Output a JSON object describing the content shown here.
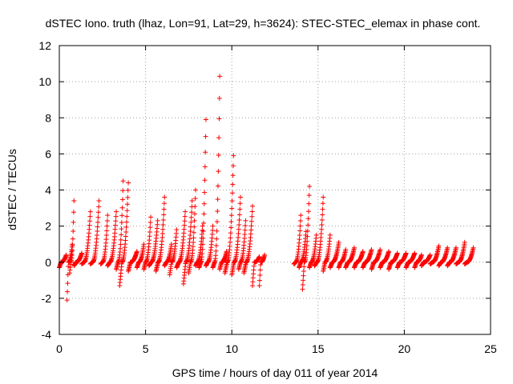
{
  "chart_data": {
    "type": "scatter",
    "title": "dSTEC Iono. truth (lhaz, Lon=91, Lat=29, h=3624): STEC-STEC_elemax in phase cont.",
    "xlabel": "GPS time / hours of day 011 of year 2014",
    "ylabel": "dSTEC  / TECUs",
    "xlim": [
      0,
      25
    ],
    "ylim": [
      -4,
      12
    ],
    "x_ticks": [
      0,
      5,
      10,
      15,
      20,
      25
    ],
    "y_ticks": [
      -4,
      -2,
      0,
      2,
      4,
      6,
      8,
      10,
      12
    ],
    "grid": true,
    "marker": "plus",
    "series_color": "#ff0000",
    "arcs": [
      {
        "x0": 0.0,
        "x1": 0.4,
        "ymin": -0.3,
        "ymax": 0.4
      },
      {
        "x0": 0.45,
        "x1": 0.75,
        "ymin": -2.1,
        "ymax": 1.0
      },
      {
        "x0": 0.6,
        "x1": 0.85,
        "ymin": -0.6,
        "ymax": 3.4
      },
      {
        "x0": 0.85,
        "x1": 1.3,
        "ymin": -0.2,
        "ymax": 0.5
      },
      {
        "x0": 1.3,
        "x1": 1.8,
        "ymin": -0.1,
        "ymax": 2.8
      },
      {
        "x0": 1.8,
        "x1": 2.3,
        "ymin": -0.1,
        "ymax": 3.4
      },
      {
        "x0": 2.4,
        "x1": 2.8,
        "ymin": -0.1,
        "ymax": 2.6
      },
      {
        "x0": 2.8,
        "x1": 3.3,
        "ymin": -0.2,
        "ymax": 2.8
      },
      {
        "x0": 3.3,
        "x1": 3.7,
        "ymin": -0.4,
        "ymax": 4.5
      },
      {
        "x0": 3.5,
        "x1": 4.0,
        "ymin": -1.3,
        "ymax": 4.4
      },
      {
        "x0": 4.0,
        "x1": 4.5,
        "ymin": -0.5,
        "ymax": 0.6
      },
      {
        "x0": 4.5,
        "x1": 4.9,
        "ymin": -0.3,
        "ymax": 1.0
      },
      {
        "x0": 4.9,
        "x1": 5.3,
        "ymin": -0.4,
        "ymax": 2.5
      },
      {
        "x0": 5.2,
        "x1": 5.7,
        "ymin": -0.2,
        "ymax": 2.3
      },
      {
        "x0": 5.6,
        "x1": 6.1,
        "ymin": -0.5,
        "ymax": 3.6
      },
      {
        "x0": 6.1,
        "x1": 6.5,
        "ymin": -0.2,
        "ymax": 1.0
      },
      {
        "x0": 6.4,
        "x1": 6.8,
        "ymin": -0.7,
        "ymax": 1.8
      },
      {
        "x0": 6.8,
        "x1": 7.3,
        "ymin": -0.3,
        "ymax": 2.8
      },
      {
        "x0": 7.2,
        "x1": 7.7,
        "ymin": -1.2,
        "ymax": 3.4
      },
      {
        "x0": 7.5,
        "x1": 7.9,
        "ymin": -0.6,
        "ymax": 4.0
      },
      {
        "x0": 7.9,
        "x1": 8.3,
        "ymin": -0.2,
        "ymax": 2.0
      },
      {
        "x0": 8.1,
        "x1": 8.5,
        "ymin": -0.3,
        "ymax": 7.9
      },
      {
        "x0": 8.5,
        "x1": 8.9,
        "ymin": -0.2,
        "ymax": 2.0
      },
      {
        "x0": 8.9,
        "x1": 9.3,
        "ymin": -0.3,
        "ymax": 10.3
      },
      {
        "x0": 9.3,
        "x1": 9.7,
        "ymin": -0.4,
        "ymax": 0.6
      },
      {
        "x0": 9.6,
        "x1": 10.1,
        "ymin": -0.6,
        "ymax": 5.9
      },
      {
        "x0": 10.0,
        "x1": 10.5,
        "ymin": -0.7,
        "ymax": 3.6
      },
      {
        "x0": 10.4,
        "x1": 10.8,
        "ymin": -0.4,
        "ymax": 2.3
      },
      {
        "x0": 10.7,
        "x1": 11.2,
        "ymin": -0.6,
        "ymax": 3.1
      },
      {
        "x0": 11.2,
        "x1": 11.6,
        "ymin": -1.3,
        "ymax": 0.3
      },
      {
        "x0": 11.6,
        "x1": 11.9,
        "ymin": -1.3,
        "ymax": 0.4
      },
      {
        "x0": 13.6,
        "x1": 14.0,
        "ymin": -0.1,
        "ymax": 2.6
      },
      {
        "x0": 13.9,
        "x1": 14.3,
        "ymin": -0.3,
        "ymax": 1.7
      },
      {
        "x0": 14.1,
        "x1": 14.5,
        "ymin": -1.5,
        "ymax": 4.2
      },
      {
        "x0": 14.5,
        "x1": 14.9,
        "ymin": -0.3,
        "ymax": 1.5
      },
      {
        "x0": 14.8,
        "x1": 15.3,
        "ymin": -0.2,
        "ymax": 3.6
      },
      {
        "x0": 15.3,
        "x1": 15.7,
        "ymin": -0.5,
        "ymax": 1.5
      },
      {
        "x0": 15.7,
        "x1": 16.2,
        "ymin": -0.3,
        "ymax": 1.1
      },
      {
        "x0": 16.2,
        "x1": 16.6,
        "ymin": -0.3,
        "ymax": 0.7
      },
      {
        "x0": 16.6,
        "x1": 17.1,
        "ymin": -0.3,
        "ymax": 0.8
      },
      {
        "x0": 17.1,
        "x1": 17.6,
        "ymin": -0.3,
        "ymax": 0.6
      },
      {
        "x0": 17.6,
        "x1": 18.1,
        "ymin": -0.3,
        "ymax": 0.7
      },
      {
        "x0": 18.1,
        "x1": 18.6,
        "ymin": -0.4,
        "ymax": 0.7
      },
      {
        "x0": 18.6,
        "x1": 19.1,
        "ymin": -0.3,
        "ymax": 0.6
      },
      {
        "x0": 19.1,
        "x1": 19.6,
        "ymin": -0.4,
        "ymax": 0.5
      },
      {
        "x0": 19.6,
        "x1": 20.1,
        "ymin": -0.3,
        "ymax": 0.5
      },
      {
        "x0": 20.1,
        "x1": 20.6,
        "ymin": -0.3,
        "ymax": 0.5
      },
      {
        "x0": 20.6,
        "x1": 21.0,
        "ymin": -0.3,
        "ymax": 0.4
      },
      {
        "x0": 21.0,
        "x1": 21.5,
        "ymin": -0.2,
        "ymax": 0.4
      },
      {
        "x0": 21.5,
        "x1": 22.0,
        "ymin": -0.1,
        "ymax": 0.9
      },
      {
        "x0": 22.0,
        "x1": 22.5,
        "ymin": -0.2,
        "ymax": 0.8
      },
      {
        "x0": 22.5,
        "x1": 23.0,
        "ymin": -0.2,
        "ymax": 0.8
      },
      {
        "x0": 23.0,
        "x1": 23.5,
        "ymin": -0.1,
        "ymax": 1.1
      },
      {
        "x0": 23.5,
        "x1": 24.0,
        "ymin": -0.1,
        "ymax": 0.8
      }
    ]
  }
}
